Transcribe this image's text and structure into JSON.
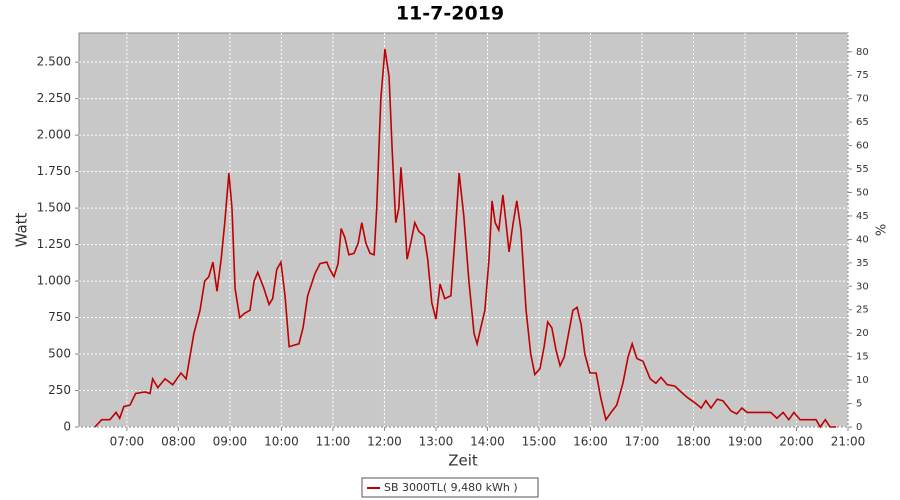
{
  "chart_data": {
    "type": "line",
    "title": "11-7-2019",
    "ylabel": "Watt",
    "y2label": "%",
    "xlabel": "Zeit",
    "grid": true,
    "legend": "bottom",
    "xlim": [
      6.07,
      21
    ],
    "xticks": [
      {
        "value": 7,
        "label": "07:00"
      },
      {
        "value": 8,
        "label": "08:00"
      },
      {
        "value": 9,
        "label": "09:00"
      },
      {
        "value": 10,
        "label": "10:00"
      },
      {
        "value": 11,
        "label": "11:00"
      },
      {
        "value": 12,
        "label": "12:00"
      },
      {
        "value": 13,
        "label": "13:00"
      },
      {
        "value": 14,
        "label": "14:00"
      },
      {
        "value": 15,
        "label": "15:00"
      },
      {
        "value": 16,
        "label": "16:00"
      },
      {
        "value": 17,
        "label": "17:00"
      },
      {
        "value": 18,
        "label": "18:00"
      },
      {
        "value": 19,
        "label": "19:00"
      },
      {
        "value": 20,
        "label": "20:00"
      },
      {
        "value": 21,
        "label": "21:00"
      }
    ],
    "ylim": [
      0,
      2700
    ],
    "yticks": [
      0,
      250,
      500,
      750,
      {
        "value": 1000,
        "label": "1.000"
      },
      {
        "value": 1250,
        "label": "1.250"
      },
      {
        "value": 1500,
        "label": "1.500"
      },
      {
        "value": 1750,
        "label": "1.750"
      },
      {
        "value": 2000,
        "label": "2.000"
      },
      {
        "value": 2250,
        "label": "2.250"
      },
      {
        "value": 2500,
        "label": "2.500"
      }
    ],
    "y2lim": [
      0,
      84
    ],
    "y2ticks": [
      0,
      5,
      10,
      15,
      20,
      25,
      30,
      35,
      40,
      45,
      50,
      55,
      60,
      65,
      70,
      75,
      80
    ],
    "x": [
      6.38,
      6.51,
      6.67,
      6.79,
      6.86,
      6.94,
      7.06,
      7.17,
      7.35,
      7.45,
      7.5,
      7.6,
      7.74,
      7.89,
      8.05,
      8.15,
      8.3,
      8.42,
      8.51,
      8.59,
      8.67,
      8.75,
      8.83,
      8.9,
      8.98,
      9.04,
      9.1,
      9.19,
      9.29,
      9.39,
      9.47,
      9.54,
      9.66,
      9.76,
      9.83,
      9.91,
      9.99,
      10.07,
      10.15,
      10.24,
      10.34,
      10.42,
      10.51,
      10.65,
      10.75,
      10.88,
      10.94,
      11.02,
      11.1,
      11.16,
      11.23,
      11.31,
      11.41,
      11.49,
      11.56,
      11.64,
      11.72,
      11.8,
      11.85,
      11.93,
      12.01,
      12.09,
      12.15,
      12.22,
      12.28,
      12.32,
      12.38,
      12.44,
      12.51,
      12.59,
      12.67,
      12.77,
      12.84,
      12.92,
      13.0,
      13.08,
      13.17,
      13.29,
      13.37,
      13.45,
      13.54,
      13.64,
      13.74,
      13.8,
      13.87,
      13.95,
      14.03,
      14.09,
      14.15,
      14.22,
      14.3,
      14.36,
      14.42,
      14.5,
      14.57,
      14.65,
      14.75,
      14.84,
      14.92,
      15.02,
      15.1,
      15.17,
      15.25,
      15.33,
      15.41,
      15.49,
      15.58,
      15.66,
      15.74,
      15.82,
      15.89,
      15.99,
      16.11,
      16.2,
      16.3,
      16.4,
      16.51,
      16.63,
      16.73,
      16.81,
      16.9,
      17.02,
      17.16,
      17.27,
      17.37,
      17.49,
      17.64,
      17.76,
      17.89,
      18.05,
      18.15,
      18.24,
      18.34,
      18.46,
      18.57,
      18.73,
      18.84,
      18.94,
      19.04,
      19.29,
      19.5,
      19.62,
      19.74,
      19.85,
      19.95,
      20.07,
      20.38,
      20.46,
      20.56,
      20.65,
      20.77
    ],
    "series": [
      {
        "name": "SB 3000TL( 9,480 kWh )",
        "color": "#c00000",
        "values": [
          0,
          50,
          50,
          100,
          60,
          140,
          150,
          230,
          240,
          230,
          330,
          270,
          330,
          290,
          370,
          330,
          640,
          800,
          1000,
          1030,
          1130,
          930,
          1150,
          1400,
          1740,
          1500,
          950,
          750,
          780,
          800,
          1000,
          1060,
          950,
          840,
          880,
          1080,
          1130,
          900,
          550,
          560,
          570,
          680,
          900,
          1050,
          1120,
          1130,
          1080,
          1030,
          1120,
          1360,
          1300,
          1180,
          1190,
          1260,
          1400,
          1260,
          1190,
          1180,
          1500,
          2250,
          2590,
          2400,
          1900,
          1400,
          1500,
          1780,
          1500,
          1150,
          1260,
          1400,
          1340,
          1310,
          1150,
          850,
          740,
          980,
          880,
          900,
          1300,
          1740,
          1450,
          1000,
          640,
          570,
          680,
          800,
          1150,
          1550,
          1400,
          1350,
          1590,
          1400,
          1200,
          1400,
          1550,
          1350,
          800,
          500,
          360,
          400,
          550,
          720,
          680,
          530,
          420,
          480,
          650,
          800,
          820,
          700,
          500,
          370,
          370,
          200,
          50,
          100,
          150,
          300,
          480,
          570,
          470,
          450,
          330,
          300,
          340,
          290,
          280,
          240,
          200,
          160,
          130,
          180,
          130,
          190,
          180,
          110,
          90,
          130,
          100,
          100,
          100,
          60,
          100,
          50,
          100,
          50,
          50,
          0,
          50,
          0,
          0
        ]
      }
    ]
  }
}
